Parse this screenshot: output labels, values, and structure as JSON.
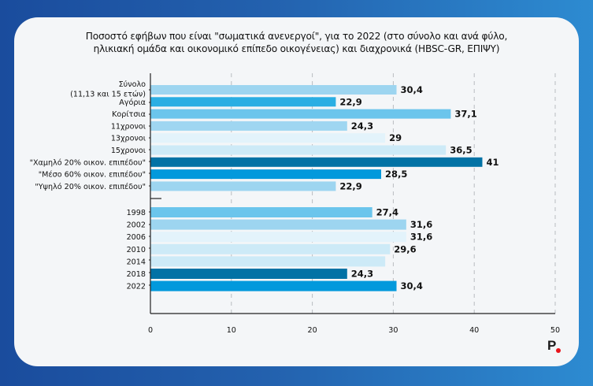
{
  "title_line1": "Ποσοστό εφήβων που είναι \"σωματικά ανενεργοί\", για το 2022 (στο σύνολο και ανά φύλο,",
  "title_line2": "ηλικιακή ομάδα και οικονομικό επίπεδο οικογένειας) και διαχρονικά (HBSC-GR, ΕΠΙΨΥ)",
  "logo": {
    "letter": "P",
    "dot_color": "#e8141b"
  },
  "chart_data": {
    "type": "bar",
    "orientation": "horizontal",
    "title": "Ποσοστό εφήβων που είναι \"σωματικά ανενεργοί\", για το 2022 (στο σύνολο και ανά φύλο, ηλικιακή ομάδα και οικονομικό επίπεδο οικογένειας) και διαχρονικά (HBSC-GR, ΕΠΙΨΥ)",
    "xlabel": "",
    "ylabel": "",
    "xlim": [
      0,
      50
    ],
    "xticks": [
      0,
      10,
      20,
      30,
      40,
      50
    ],
    "grid": "vertical-dashed",
    "groups": [
      {
        "name": "2022",
        "bars": [
          {
            "label": [
              "Σύνολο",
              "(11,13 και 15 ετών)"
            ],
            "value": 30.4,
            "value_label": "30,4",
            "color": "#9dd5f0"
          },
          {
            "label": [
              "Αγόρια"
            ],
            "value": 22.9,
            "value_label": "22,9",
            "color": "#2aaee3"
          },
          {
            "label": [
              "Κορίτσια"
            ],
            "value": 37.1,
            "value_label": "37,1",
            "color": "#6bc5ec"
          },
          {
            "label": [
              "11χρονοι"
            ],
            "value": 24.3,
            "value_label": "24,3",
            "color": "#9fd6f1"
          },
          {
            "label": [
              "13χρονοι"
            ],
            "value": 29,
            "value_label": "29",
            "color": "#e3f3fb"
          },
          {
            "label": [
              "15χρονοι"
            ],
            "value": 36.5,
            "value_label": "36,5",
            "color": "#cdeaf7"
          },
          {
            "label": [
              "\"Χαμηλό 20% οικον. επιπέδου\""
            ],
            "value": 41,
            "value_label": "41",
            "color": "#0272a5"
          },
          {
            "label": [
              "\"Μέσο 60% οικον. επιπέδου\""
            ],
            "value": 28.5,
            "value_label": "28,5",
            "color": "#0299dc"
          },
          {
            "label": [
              "\"Υψηλό 20% οικον. επιπέδου\""
            ],
            "value": 22.9,
            "value_label": "22,9",
            "color": "#9dd5f0"
          }
        ]
      },
      {
        "name": "trend",
        "bars": [
          {
            "label": [
              "1998"
            ],
            "value": 27.4,
            "value_label": "27,4",
            "color": "#6bc5ec"
          },
          {
            "label": [
              "2002"
            ],
            "value": 31.6,
            "value_label": "31,6",
            "color": "#9dd5f0"
          },
          {
            "label": [
              "2006"
            ],
            "value": 31.6,
            "value_label": "31,6",
            "color": "#e3f3fb"
          },
          {
            "label": [
              "2010"
            ],
            "value": 29.6,
            "value_label": "29,6",
            "color": "#cdeaf7"
          },
          {
            "label": [
              "2014"
            ],
            "value": 29,
            "value_label": "",
            "color": "#cdeaf7"
          },
          {
            "label": [
              "2018"
            ],
            "value": 24.3,
            "value_label": "24,3",
            "color": "#0272a5"
          },
          {
            "label": [
              "2022"
            ],
            "value": 30.4,
            "value_label": "30,4",
            "color": "#0299dc"
          }
        ]
      }
    ]
  }
}
